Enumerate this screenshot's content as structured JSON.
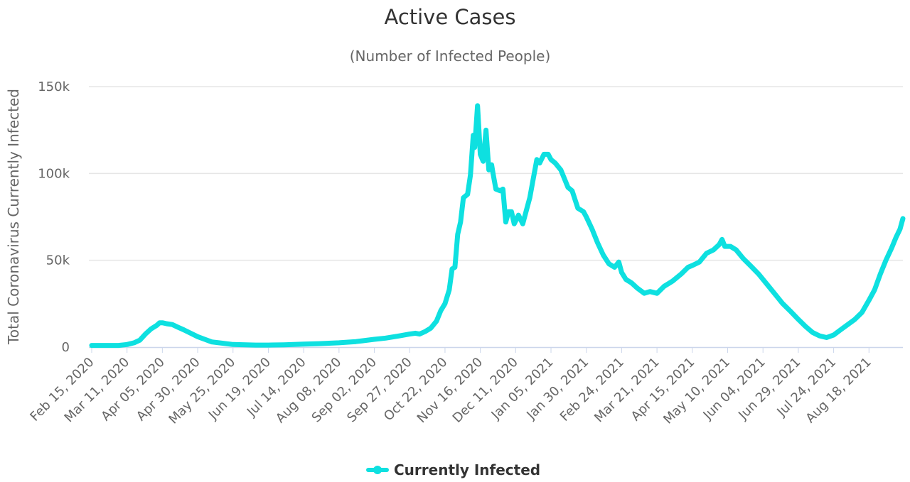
{
  "chart_data": {
    "type": "line",
    "title": "Active Cases",
    "subtitle": "(Number of Infected People)",
    "xlabel": "",
    "ylabel": "Total Coronavirus Currently Infected",
    "ylim": [
      0,
      150000
    ],
    "y_ticks": [
      {
        "value": 0,
        "label": "0"
      },
      {
        "value": 50000,
        "label": "50k"
      },
      {
        "value": 100000,
        "label": "100k"
      },
      {
        "value": 150000,
        "label": "150k"
      }
    ],
    "x_tick_labels": [
      "Feb 15, 2020",
      "Mar 11, 2020",
      "Apr 05, 2020",
      "Apr 30, 2020",
      "May 25, 2020",
      "Jun 19, 2020",
      "Jul 14, 2020",
      "Aug 08, 2020",
      "Sep 02, 2020",
      "Sep 27, 2020",
      "Oct 22, 2020",
      "Nov 16, 2020",
      "Dec 11, 2020",
      "Jan 05, 2021",
      "Jan 30, 2021",
      "Feb 24, 2021",
      "Mar 21, 2021",
      "Apr 15, 2021",
      "May 10, 2021",
      "Jun 04, 2021",
      "Jun 29, 2021",
      "Jul 24, 2021",
      "Aug 18, 2021"
    ],
    "grid": true,
    "legend_position": "bottom-center",
    "series": [
      {
        "name": "Currently Infected",
        "color": "#0ee0e0",
        "points": [
          [
            "Feb 15, 2020",
            1000
          ],
          [
            "Feb 25, 2020",
            1000
          ],
          [
            "Mar 05, 2020",
            1000
          ],
          [
            "Mar 11, 2020",
            1500
          ],
          [
            "Mar 16, 2020",
            2500
          ],
          [
            "Mar 20, 2020",
            4000
          ],
          [
            "Mar 24, 2020",
            7500
          ],
          [
            "Mar 28, 2020",
            10500
          ],
          [
            "Apr 01, 2020",
            12500
          ],
          [
            "Apr 03, 2020",
            14000
          ],
          [
            "Apr 05, 2020",
            14000
          ],
          [
            "Apr 08, 2020",
            13500
          ],
          [
            "Apr 12, 2020",
            13000
          ],
          [
            "Apr 16, 2020",
            11500
          ],
          [
            "Apr 20, 2020",
            10000
          ],
          [
            "Apr 25, 2020",
            8000
          ],
          [
            "Apr 30, 2020",
            6000
          ],
          [
            "May 05, 2020",
            4500
          ],
          [
            "May 10, 2020",
            3000
          ],
          [
            "May 15, 2020",
            2500
          ],
          [
            "May 25, 2020",
            1500
          ],
          [
            "Jun 10, 2020",
            1200
          ],
          [
            "Jun 19, 2020",
            1200
          ],
          [
            "Jun 30, 2020",
            1300
          ],
          [
            "Jul 14, 2020",
            1700
          ],
          [
            "Jul 25, 2020",
            2000
          ],
          [
            "Aug 08, 2020",
            2500
          ],
          [
            "Aug 20, 2020",
            3200
          ],
          [
            "Sep 02, 2020",
            4500
          ],
          [
            "Sep 10, 2020",
            5200
          ],
          [
            "Sep 20, 2020",
            6500
          ],
          [
            "Sep 27, 2020",
            7500
          ],
          [
            "Oct 01, 2020",
            8000
          ],
          [
            "Oct 04, 2020",
            7500
          ],
          [
            "Oct 08, 2020",
            9000
          ],
          [
            "Oct 12, 2020",
            11000
          ],
          [
            "Oct 16, 2020",
            15000
          ],
          [
            "Oct 19, 2020",
            21000
          ],
          [
            "Oct 22, 2020",
            25000
          ],
          [
            "Oct 25, 2020",
            33000
          ],
          [
            "Oct 27, 2020",
            45000
          ],
          [
            "Oct 29, 2020",
            46000
          ],
          [
            "Oct 31, 2020",
            65000
          ],
          [
            "Nov 02, 2020",
            72000
          ],
          [
            "Nov 04, 2020",
            86000
          ],
          [
            "Nov 07, 2020",
            88000
          ],
          [
            "Nov 09, 2020",
            99000
          ],
          [
            "Nov 11, 2020",
            122000
          ],
          [
            "Nov 12, 2020",
            115000
          ],
          [
            "Nov 14, 2020",
            139000
          ],
          [
            "Nov 16, 2020",
            111000
          ],
          [
            "Nov 18, 2020",
            107000
          ],
          [
            "Nov 20, 2020",
            125000
          ],
          [
            "Nov 22, 2020",
            102000
          ],
          [
            "Nov 24, 2020",
            105000
          ],
          [
            "Nov 25, 2020",
            100000
          ],
          [
            "Nov 27, 2020",
            91000
          ],
          [
            "Nov 30, 2020",
            90000
          ],
          [
            "Dec 02, 2020",
            91000
          ],
          [
            "Dec 04, 2020",
            72000
          ],
          [
            "Dec 06, 2020",
            78000
          ],
          [
            "Dec 08, 2020",
            78000
          ],
          [
            "Dec 10, 2020",
            71000
          ],
          [
            "Dec 13, 2020",
            76000
          ],
          [
            "Dec 16, 2020",
            71000
          ],
          [
            "Dec 19, 2020",
            80000
          ],
          [
            "Dec 21, 2020",
            86000
          ],
          [
            "Dec 23, 2020",
            95000
          ],
          [
            "Dec 26, 2020",
            108000
          ],
          [
            "Dec 28, 2020",
            106000
          ],
          [
            "Dec 31, 2020",
            111000
          ],
          [
            "Jan 03, 2021",
            111000
          ],
          [
            "Jan 05, 2021",
            108000
          ],
          [
            "Jan 08, 2021",
            106000
          ],
          [
            "Jan 12, 2021",
            102000
          ],
          [
            "Jan 17, 2021",
            92000
          ],
          [
            "Jan 20, 2021",
            90000
          ],
          [
            "Jan 24, 2021",
            80000
          ],
          [
            "Jan 28, 2021",
            78000
          ],
          [
            "Jan 30, 2021",
            75000
          ],
          [
            "Feb 03, 2021",
            68000
          ],
          [
            "Feb 07, 2021",
            60000
          ],
          [
            "Feb 11, 2021",
            53000
          ],
          [
            "Feb 15, 2021",
            48000
          ],
          [
            "Feb 19, 2021",
            46000
          ],
          [
            "Feb 22, 2021",
            49000
          ],
          [
            "Feb 24, 2021",
            43000
          ],
          [
            "Feb 27, 2021",
            39000
          ],
          [
            "Mar 03, 2021",
            37000
          ],
          [
            "Mar 07, 2021",
            34000
          ],
          [
            "Mar 12, 2021",
            31000
          ],
          [
            "Mar 16, 2021",
            32000
          ],
          [
            "Mar 21, 2021",
            31000
          ],
          [
            "Mar 26, 2021",
            35000
          ],
          [
            "Apr 01, 2021",
            38000
          ],
          [
            "Apr 07, 2021",
            42000
          ],
          [
            "Apr 12, 2021",
            46000
          ],
          [
            "Apr 15, 2021",
            47000
          ],
          [
            "Apr 20, 2021",
            49000
          ],
          [
            "Apr 25, 2021",
            54000
          ],
          [
            "Apr 30, 2021",
            56000
          ],
          [
            "May 04, 2021",
            59000
          ],
          [
            "May 06, 2021",
            62000
          ],
          [
            "May 08, 2021",
            58000
          ],
          [
            "May 12, 2021",
            58000
          ],
          [
            "May 16, 2021",
            56000
          ],
          [
            "May 21, 2021",
            51000
          ],
          [
            "May 26, 2021",
            47000
          ],
          [
            "Jun 01, 2021",
            42000
          ],
          [
            "Jun 04, 2021",
            39000
          ],
          [
            "Jun 08, 2021",
            35000
          ],
          [
            "Jun 13, 2021",
            30000
          ],
          [
            "Jun 18, 2021",
            25000
          ],
          [
            "Jun 23, 2021",
            21000
          ],
          [
            "Jun 29, 2021",
            16000
          ],
          [
            "Jul 04, 2021",
            12000
          ],
          [
            "Jul 09, 2021",
            8500
          ],
          [
            "Jul 14, 2021",
            6500
          ],
          [
            "Jul 19, 2021",
            5500
          ],
          [
            "Jul 24, 2021",
            7000
          ],
          [
            "Jul 29, 2021",
            10000
          ],
          [
            "Aug 03, 2021",
            13000
          ],
          [
            "Aug 08, 2021",
            16000
          ],
          [
            "Aug 13, 2021",
            20000
          ],
          [
            "Aug 18, 2021",
            27000
          ],
          [
            "Aug 22, 2021",
            33000
          ],
          [
            "Aug 26, 2021",
            42000
          ],
          [
            "Aug 30, 2021",
            50000
          ],
          [
            "Sep 03, 2021",
            57000
          ],
          [
            "Sep 06, 2021",
            63000
          ],
          [
            "Sep 09, 2021",
            68000
          ],
          [
            "Sep 11, 2021",
            74000
          ]
        ]
      }
    ]
  }
}
